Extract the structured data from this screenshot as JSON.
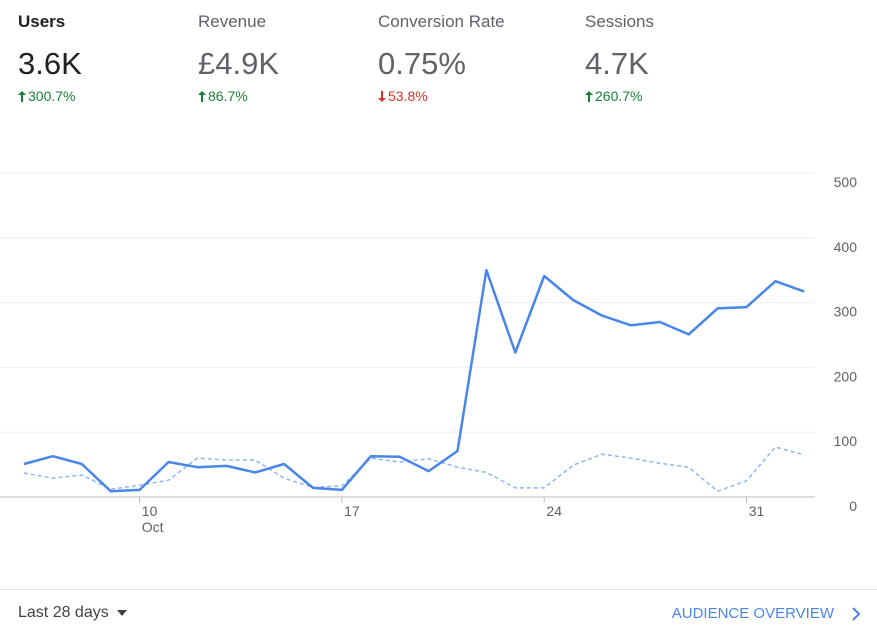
{
  "metrics": [
    {
      "name": "Users",
      "value": "3.6K",
      "change": "300.7%",
      "trend": "up"
    },
    {
      "name": "Revenue",
      "value": "£4.9K",
      "change": "86.7%",
      "trend": "up"
    },
    {
      "name": "Conversion Rate",
      "value": "0.75%",
      "change": "53.8%",
      "trend": "down"
    },
    {
      "name": "Sessions",
      "value": "4.7K",
      "change": "260.7%",
      "trend": "up"
    }
  ],
  "chart_data": {
    "type": "line",
    "categories": [
      null,
      null,
      null,
      null,
      "10",
      null,
      null,
      null,
      null,
      null,
      null,
      "17",
      null,
      null,
      null,
      null,
      null,
      null,
      "24",
      null,
      null,
      null,
      null,
      null,
      null,
      "31",
      null,
      null
    ],
    "x_sublabel": "Oct",
    "series": [
      {
        "color": "#4a86e8",
        "dashed": false,
        "values": [
          51,
          63,
          51,
          9,
          11,
          54,
          46,
          48,
          38,
          51,
          14,
          11,
          63,
          62,
          40,
          71,
          350,
          223,
          341,
          304,
          280,
          265,
          270,
          251,
          291,
          293,
          333,
          317
        ]
      },
      {
        "color": "#8fb4f0",
        "dashed": true,
        "values": [
          37,
          29,
          34,
          12,
          18,
          26,
          60,
          57,
          57,
          29,
          15,
          17,
          60,
          54,
          59,
          46,
          38,
          14,
          14,
          49,
          66,
          60,
          52,
          46,
          9,
          25,
          77,
          65
        ]
      }
    ],
    "ylim": [
      0,
      500
    ],
    "yticks": [
      0,
      100,
      200,
      300,
      400,
      500
    ],
    "grid": true
  },
  "footer": {
    "range": "Last 28 days",
    "link": "AUDIENCE OVERVIEW"
  }
}
